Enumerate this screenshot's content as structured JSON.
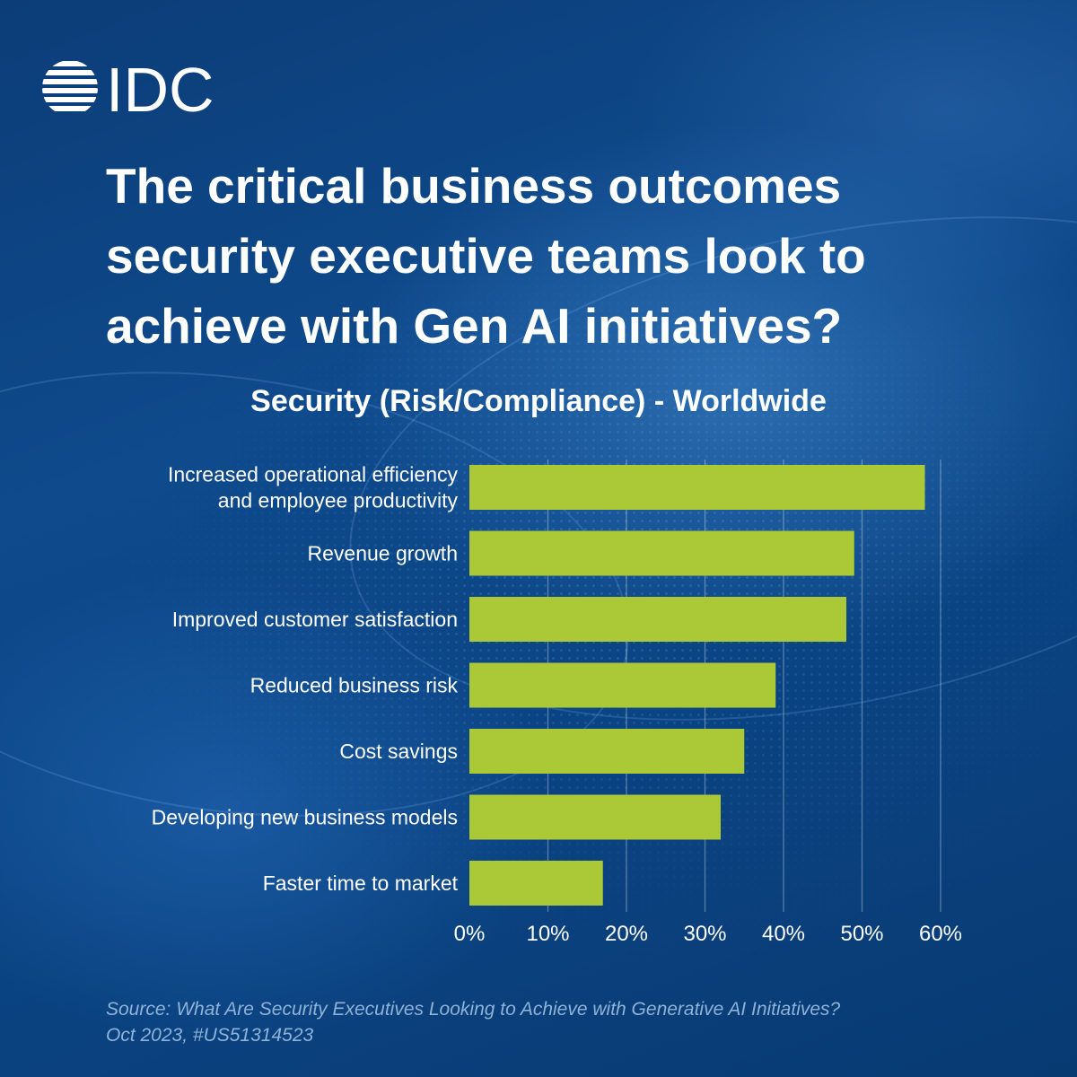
{
  "brand": {
    "logo_text": "IDC",
    "colors": {
      "background": "#0d4584",
      "bar": "#abc837",
      "text": "#ffffff",
      "source": "#8fb2d8"
    }
  },
  "header": {
    "title": "The critical business outcomes security executive teams look to achieve with Gen AI initiatives?"
  },
  "chart_data": {
    "type": "bar",
    "orientation": "horizontal",
    "title": "Security (Risk/Compliance) - Worldwide",
    "categories": [
      [
        "Increased operational efficiency",
        "and employee productivity"
      ],
      [
        "Revenue growth"
      ],
      [
        "Improved customer satisfaction"
      ],
      [
        "Reduced business risk"
      ],
      [
        "Cost savings"
      ],
      [
        "Developing new business models"
      ],
      [
        "Faster time to market"
      ]
    ],
    "values": [
      58,
      49,
      48,
      39,
      35,
      32,
      17
    ],
    "xlim": [
      0,
      60
    ],
    "xticks": [
      0,
      10,
      20,
      30,
      40,
      50,
      60
    ],
    "xtick_labels": [
      "0%",
      "10%",
      "20%",
      "30%",
      "40%",
      "50%",
      "60%"
    ],
    "grid": "vertical",
    "legend": "none"
  },
  "footer": {
    "source_line1": "Source: What Are Security Executives Looking to Achieve with Generative AI Initiatives?",
    "source_line2": "Oct 2023, #US51314523"
  }
}
